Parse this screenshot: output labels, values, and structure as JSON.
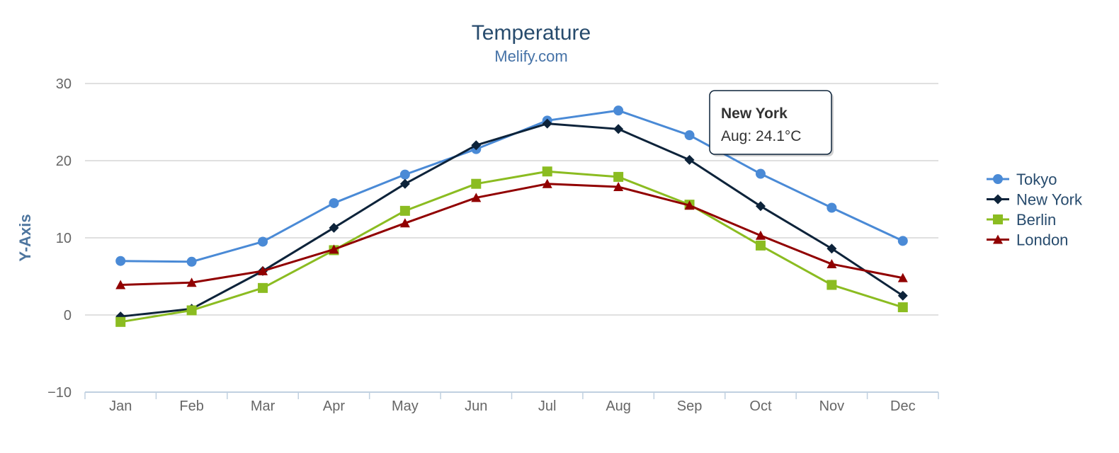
{
  "chart_data": {
    "type": "line",
    "title": "Temperature",
    "subtitle": "Melify.com",
    "xlabel": "",
    "ylabel": "Y-Axis",
    "categories": [
      "Jan",
      "Feb",
      "Mar",
      "Apr",
      "May",
      "Jun",
      "Jul",
      "Aug",
      "Sep",
      "Oct",
      "Nov",
      "Dec"
    ],
    "ylim": [
      -10,
      30
    ],
    "yticks": [
      -10,
      0,
      10,
      20,
      30
    ],
    "ytick_labels": [
      "−10",
      "0",
      "10",
      "20",
      "30"
    ],
    "grid": true,
    "legend": "right",
    "series": [
      {
        "name": "Tokyo",
        "color": "#4a8ad6",
        "marker": "circle",
        "values": [
          7.0,
          6.9,
          9.5,
          14.5,
          18.2,
          21.5,
          25.2,
          26.5,
          23.3,
          18.3,
          13.9,
          9.6
        ]
      },
      {
        "name": "New York",
        "color": "#0d233a",
        "marker": "diamond",
        "values": [
          -0.2,
          0.8,
          5.7,
          11.3,
          17.0,
          22.0,
          24.8,
          24.1,
          20.1,
          14.1,
          8.6,
          2.5
        ]
      },
      {
        "name": "Berlin",
        "color": "#8bbc21",
        "marker": "square",
        "values": [
          -0.9,
          0.6,
          3.5,
          8.4,
          13.5,
          17.0,
          18.6,
          17.9,
          14.3,
          9.0,
          3.9,
          1.0
        ]
      },
      {
        "name": "London",
        "color": "#910000",
        "marker": "triangle",
        "values": [
          3.9,
          4.2,
          5.7,
          8.5,
          11.9,
          15.2,
          17.0,
          16.6,
          14.2,
          10.3,
          6.6,
          4.8
        ]
      }
    ],
    "tooltip": {
      "series": "New York",
      "category": "Aug",
      "label": "Aug: 24.1°C"
    }
  }
}
